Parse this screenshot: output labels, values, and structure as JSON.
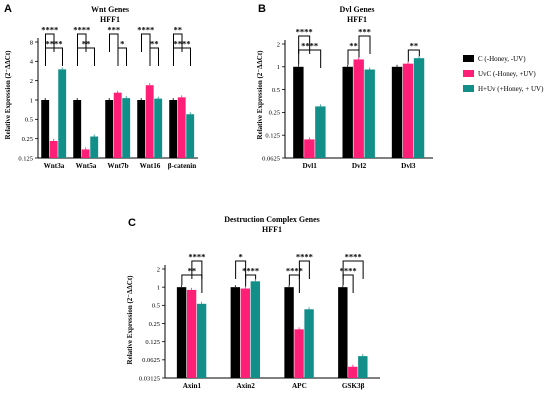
{
  "colors": {
    "C": "#000000",
    "UvC": "#ff1f77",
    "HUv": "#138f8a"
  },
  "legend": [
    {
      "label": "C (-Honey, -UV)",
      "color": "#000000"
    },
    {
      "label": "UvC (-Honey, +UV)",
      "color": "#ff1f77"
    },
    {
      "label": "H+Uv (+Honey, + UV)",
      "color": "#138f8a"
    }
  ],
  "chart_data": [
    {
      "panel": "A",
      "type": "bar",
      "title": "Wnt Genes",
      "subtitle": "HFF1",
      "ylabel": "Relative Expression (2⁻ΔΔCt)",
      "y_scale": "log2",
      "ylim": [
        0.125,
        8
      ],
      "yticks": [
        "0.125",
        "0.25",
        "0.5",
        "1",
        "2",
        "4",
        "8"
      ],
      "categories": [
        "Wnt3a",
        "Wnt5a",
        "Wnt7b",
        "Wnt16",
        "β-catenin"
      ],
      "series": [
        {
          "name": "C (-Honey, -UV)",
          "values": [
            1,
            1,
            1,
            1,
            1
          ]
        },
        {
          "name": "UvC (-Honey, +UV)",
          "values": [
            0.23,
            0.17,
            1.3,
            1.7,
            1.1
          ]
        },
        {
          "name": "H+Uv (+Honey, + UV)",
          "values": [
            3.0,
            0.27,
            1.07,
            1.05,
            0.6
          ]
        }
      ],
      "significance": [
        {
          "category": 0,
          "pair": "C-HUv",
          "label": "****"
        },
        {
          "category": 0,
          "pair": "C-UvC",
          "label": "****"
        },
        {
          "category": 1,
          "pair": "C-HUv",
          "label": "**"
        },
        {
          "category": 1,
          "pair": "C-UvC",
          "label": "****"
        },
        {
          "category": 2,
          "pair": "UvC-HUv",
          "label": "*"
        },
        {
          "category": 2,
          "pair": "C-UvC",
          "label": "***"
        },
        {
          "category": 3,
          "pair": "UvC-HUv",
          "label": "**"
        },
        {
          "category": 3,
          "pair": "C-UvC",
          "label": "****"
        },
        {
          "category": 4,
          "pair": "C-HUv",
          "label": "****"
        },
        {
          "category": 4,
          "pair": "C-UvC",
          "label": "**"
        }
      ]
    },
    {
      "panel": "B",
      "type": "bar",
      "title": "Dvl Genes",
      "subtitle": "HFF1",
      "ylabel": "Relative Expression (2⁻ΔΔCt)",
      "y_scale": "log2",
      "ylim": [
        0.0625,
        2
      ],
      "yticks": [
        "0.0625",
        "0.125",
        "0.25",
        "0.5",
        "1",
        "2"
      ],
      "categories": [
        "Dvl1",
        "Dvl2",
        "Dvl3"
      ],
      "series": [
        {
          "name": "C (-Honey, -UV)",
          "values": [
            1,
            1,
            1
          ]
        },
        {
          "name": "UvC (-Honey, +UV)",
          "values": [
            0.11,
            1.25,
            1.1
          ]
        },
        {
          "name": "H+Uv (+Honey, + UV)",
          "values": [
            0.3,
            0.92,
            1.3
          ]
        }
      ],
      "significance": [
        {
          "category": 0,
          "pair": "C-HUv",
          "label": "****"
        },
        {
          "category": 0,
          "pair": "C-UvC",
          "label": "****"
        },
        {
          "category": 1,
          "pair": "C-UvC",
          "label": "**"
        },
        {
          "category": 1,
          "pair": "UvC-HUv",
          "label": "***"
        },
        {
          "category": 2,
          "pair": "UvC-HUv",
          "label": "**"
        }
      ]
    },
    {
      "panel": "C",
      "type": "bar",
      "title": "Destruction Complex Genes",
      "subtitle": "HFF1",
      "ylabel": "Relative Expression (2⁻ΔΔCt)",
      "y_scale": "log2",
      "ylim": [
        0.03125,
        2
      ],
      "yticks": [
        "0.03125",
        "0.0625",
        "0.125",
        "0.25",
        "0.5",
        "1",
        "2"
      ],
      "categories": [
        "Axin1",
        "Axin2",
        "APC",
        "GSK3β"
      ],
      "series": [
        {
          "name": "C (-Honey, -UV)",
          "values": [
            1,
            1,
            1,
            1
          ]
        },
        {
          "name": "UvC (-Honey, +UV)",
          "values": [
            0.9,
            0.95,
            0.2,
            0.048
          ]
        },
        {
          "name": "H+Uv (+Honey, + UV)",
          "values": [
            0.53,
            1.25,
            0.43,
            0.072
          ]
        }
      ],
      "significance": [
        {
          "category": 0,
          "pair": "C-HUv",
          "label": "**"
        },
        {
          "category": 0,
          "pair": "UvC-HUv",
          "label": "****"
        },
        {
          "category": 1,
          "pair": "UvC-HUv",
          "label": "****"
        },
        {
          "category": 1,
          "pair": "C-UvC",
          "label": "*"
        },
        {
          "category": 2,
          "pair": "C-UvC",
          "label": "****"
        },
        {
          "category": 2,
          "pair": "UvC-HUv",
          "label": "****"
        },
        {
          "category": 3,
          "pair": "C-UvC",
          "label": "****"
        },
        {
          "category": 3,
          "pair": "C-HUv",
          "label": "****"
        }
      ]
    }
  ]
}
